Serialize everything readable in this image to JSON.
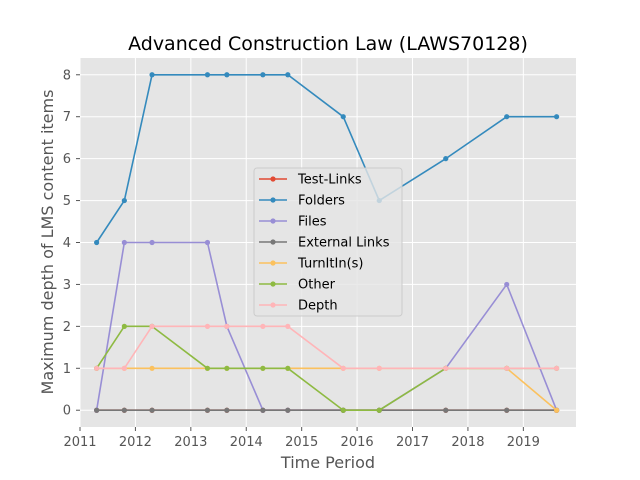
{
  "chart_data": {
    "type": "line",
    "title": "Advanced Construction Law (LAWS70128)",
    "xlabel": "Time Period",
    "ylabel": "Maximum depth of LMS content items",
    "xlim": [
      2011.0,
      2019.95
    ],
    "ylim": [
      -0.4,
      8.4
    ],
    "xticks": [
      2011,
      2012,
      2013,
      2014,
      2015,
      2016,
      2017,
      2018,
      2019
    ],
    "yticks": [
      0,
      1,
      2,
      3,
      4,
      5,
      6,
      7,
      8
    ],
    "grid": true,
    "legend_position": "center",
    "x": [
      2011.3,
      2011.8,
      2012.3,
      2013.3,
      2013.65,
      2014.3,
      2014.75,
      2015.75,
      2016.4,
      2017.6,
      2018.7,
      2019.6
    ],
    "series": [
      {
        "name": "Test-Links",
        "color": "#E24A33",
        "values": [
          0,
          0,
          0,
          0,
          0,
          0,
          0,
          0,
          0,
          0,
          0,
          0
        ]
      },
      {
        "name": "Folders",
        "color": "#348ABD",
        "values": [
          4,
          5,
          8,
          8,
          8,
          8,
          8,
          7,
          5,
          6,
          7,
          7
        ]
      },
      {
        "name": "Files",
        "color": "#988ED5",
        "values": [
          0,
          4,
          4,
          4,
          2,
          0,
          0,
          0,
          0,
          1,
          3,
          0
        ]
      },
      {
        "name": "External Links",
        "color": "#777777",
        "values": [
          0,
          0,
          0,
          0,
          0,
          0,
          0,
          0,
          0,
          0,
          0,
          0
        ]
      },
      {
        "name": "TurnItIn(s)",
        "color": "#FBC15E",
        "values": [
          1,
          1,
          1,
          1,
          1,
          1,
          1,
          1,
          1,
          1,
          1,
          0
        ]
      },
      {
        "name": "Other",
        "color": "#8EBA42",
        "values": [
          1,
          2,
          2,
          1,
          1,
          1,
          1,
          0,
          0,
          1,
          1,
          1
        ]
      },
      {
        "name": "Depth",
        "color": "#FFB5B8",
        "values": [
          1,
          1,
          2,
          2,
          2,
          2,
          2,
          1,
          1,
          1,
          1,
          1
        ]
      }
    ]
  }
}
